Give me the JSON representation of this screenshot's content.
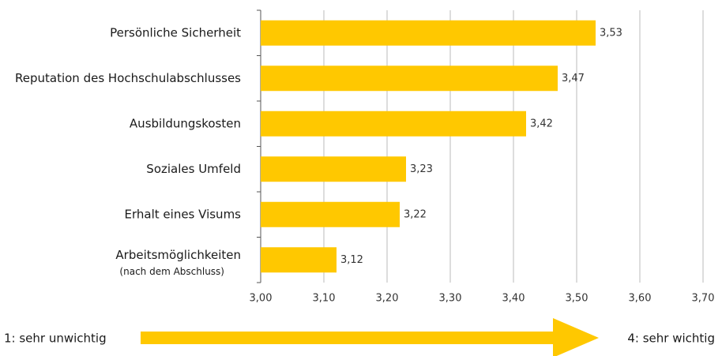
{
  "chart_data": {
    "type": "bar",
    "orientation": "horizontal",
    "categories": [
      "Persönliche Sicherheit",
      "Reputation des Hochschulabschlusses",
      "Ausbildungskosten",
      "Soziales Umfeld",
      "Erhalt eines Visums",
      "Arbeitsmöglichkeiten"
    ],
    "category_sublabels": [
      null,
      null,
      null,
      null,
      null,
      "(nach dem Abschluss)"
    ],
    "values": [
      3.53,
      3.47,
      3.42,
      3.23,
      3.22,
      3.12
    ],
    "value_labels": [
      "3,53",
      "3,47",
      "3,42",
      "3,23",
      "3,22",
      "3,12"
    ],
    "color": "#ffc800",
    "xlim": [
      3.0,
      3.7
    ],
    "xticks": [
      {
        "value": 3.0,
        "label": "3,00"
      },
      {
        "value": 3.1,
        "label": "3,10"
      },
      {
        "value": 3.2,
        "label": "3,20"
      },
      {
        "value": 3.3,
        "label": "3,30"
      },
      {
        "value": 3.4,
        "label": "3,40"
      },
      {
        "value": 3.5,
        "label": "3,50"
      },
      {
        "value": 3.6,
        "label": "3,60"
      },
      {
        "value": 3.7,
        "label": "3,70"
      }
    ],
    "grid": true,
    "scale_low_label": "1: sehr unwichtig",
    "scale_high_label": "4: sehr wichtig"
  }
}
